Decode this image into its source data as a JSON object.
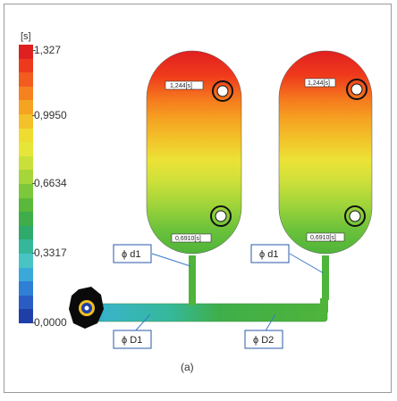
{
  "legend": {
    "unit": "[s]",
    "ticks": [
      "1,327",
      "0,9950",
      "0,6634",
      "0,3317",
      "0,0000"
    ],
    "colors": [
      "#e02020",
      "#ee3a1c",
      "#f25c1f",
      "#f5821f",
      "#f5a422",
      "#f3c12a",
      "#efdc31",
      "#e6e63a",
      "#c9e03a",
      "#a6d63a",
      "#7cc83a",
      "#5ab83a",
      "#3fae4a",
      "#2faa6a",
      "#35b89a",
      "#48c4c4",
      "#3aa8d8",
      "#2f7fd4",
      "#2a5cc4",
      "#1f3fa8"
    ]
  },
  "tanks": [
    {
      "top_tag": "1,244[s]",
      "bottom_tag": "0,6910[s]"
    },
    {
      "top_tag": "1,244[s]",
      "bottom_tag": "0,6910[s]"
    }
  ],
  "labels": {
    "d1_left": "ϕ d1",
    "d1_right": "ϕ d1",
    "D1": "ϕ D1",
    "D2": "ϕ D2"
  },
  "caption": "(a)"
}
